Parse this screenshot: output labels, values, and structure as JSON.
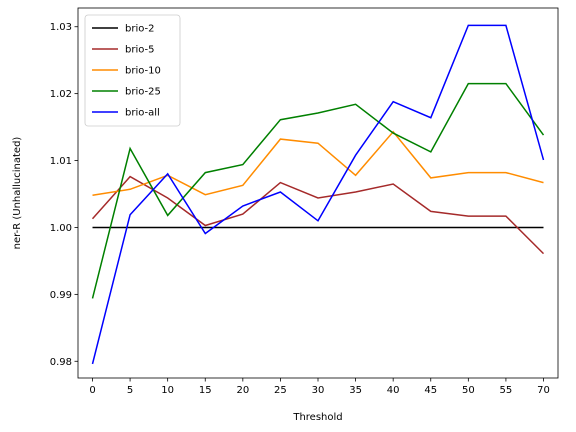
{
  "chart_data": {
    "type": "line",
    "title": "",
    "xlabel": "Threshold",
    "ylabel": "ner-R (Unhallucinated)",
    "x": [
      0,
      5,
      10,
      15,
      20,
      25,
      30,
      35,
      40,
      45,
      50,
      55,
      70
    ],
    "x_tick_labels": [
      "0",
      "5",
      "10",
      "15",
      "20",
      "25",
      "30",
      "35",
      "40",
      "45",
      "50",
      "55",
      "70"
    ],
    "y_ticks": [
      0.98,
      0.99,
      1.0,
      1.01,
      1.02,
      1.03
    ],
    "y_tick_labels": [
      "0.98",
      "0.99",
      "1.00",
      "1.01",
      "1.02",
      "1.03"
    ],
    "ylim": [
      0.9775,
      1.0328
    ],
    "grid": false,
    "legend_position": "upper-left",
    "series": [
      {
        "name": "brio-2",
        "color": "#000000",
        "values": [
          1.0,
          1.0,
          1.0,
          1.0,
          1.0,
          1.0,
          1.0,
          1.0,
          1.0,
          1.0,
          1.0,
          1.0,
          1.0
        ]
      },
      {
        "name": "brio-5",
        "color": "#a52a2a",
        "values": [
          1.0013,
          1.0076,
          1.0044,
          1.0003,
          1.002,
          1.0067,
          1.0044,
          1.0053,
          1.0065,
          1.0024,
          1.0017,
          1.0017,
          0.9961
        ]
      },
      {
        "name": "brio-10",
        "color": "#ff8c00",
        "values": [
          1.0048,
          1.0057,
          1.0078,
          1.0049,
          1.0063,
          1.0132,
          1.0126,
          1.0078,
          1.0143,
          1.0074,
          1.0082,
          1.0082,
          1.0067
        ]
      },
      {
        "name": "brio-25",
        "color": "#008000",
        "values": [
          0.9894,
          1.0118,
          1.0018,
          1.0082,
          1.0094,
          1.0161,
          1.0171,
          1.0184,
          1.0141,
          1.0113,
          1.0215,
          1.0215,
          1.0138
        ]
      },
      {
        "name": "brio-all",
        "color": "#0000ff",
        "values": [
          0.9796,
          1.0019,
          1.008,
          0.9991,
          1.0032,
          1.0053,
          1.001,
          1.0108,
          1.0188,
          1.0164,
          1.0302,
          1.0302,
          1.0101
        ]
      }
    ]
  }
}
